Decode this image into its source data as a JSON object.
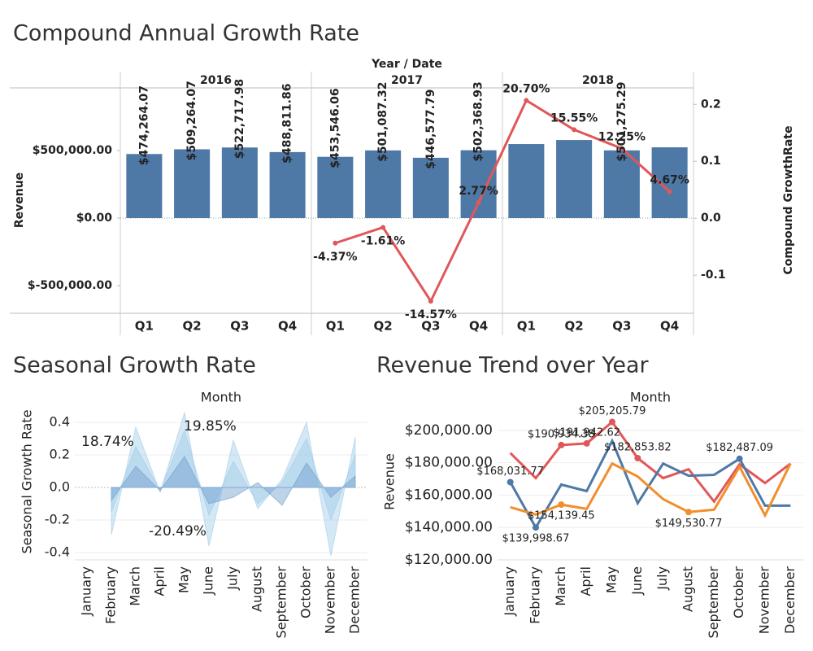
{
  "chart_data": [
    {
      "type": "bar-line",
      "title": "Compound Annual Growth Rate",
      "x_title": "Year  /  Date",
      "groups": [
        "2016",
        "2017",
        "2018"
      ],
      "categories": [
        "Q1",
        "Q2",
        "Q3",
        "Q4",
        "Q1",
        "Q2",
        "Q3",
        "Q4",
        "Q1",
        "Q2",
        "Q3",
        "Q4"
      ],
      "ylabel": "Revenue",
      "y2label": "Compound GrowthRate",
      "ylim": [
        -705000,
        964000
      ],
      "yticks": [
        {
          "value": 500000,
          "label": "$500,000.00"
        },
        {
          "value": 0,
          "label": "$0.00"
        },
        {
          "value": -500000,
          "label": "$-500,000.00"
        }
      ],
      "y2lim": [
        -0.167,
        0.229
      ],
      "y2ticks": [
        0.2,
        0.1,
        {
          "value": 0,
          "label": "0.0"
        },
        -0.1
      ],
      "series": [
        {
          "type": "bar",
          "color": "#4e79a7",
          "values": [
            474264.07,
            509264.07,
            522717.98,
            488811.86,
            453546.06,
            501087.32,
            446577.79,
            502368.93,
            548000,
            578000,
            501275.29,
            524000
          ],
          "value_labels": [
            "$474,264.07",
            "$509,264.07",
            "$522,717.98",
            "$488,811.86",
            "$453,546.06",
            "$501,087.32",
            "$446,577.79",
            "$502,368.93",
            null,
            null,
            "$501,275.29",
            null
          ]
        },
        {
          "type": "line",
          "axis": "y2",
          "color": "#e15759",
          "values": [
            null,
            null,
            null,
            null,
            -0.0437,
            -0.0161,
            -0.1457,
            0.0277,
            0.207,
            0.1555,
            0.1225,
            0.0467
          ],
          "value_labels": [
            null,
            null,
            null,
            null,
            "-4.37%",
            "-1.61%",
            "-14.57%",
            "2.77%",
            "20.70%",
            "15.55%",
            "12.25%",
            "4.67%"
          ]
        }
      ]
    },
    {
      "type": "area",
      "title": "Seasonal Growth Rate",
      "x_title": "Month",
      "ylabel": "Seasonal Growth Rate",
      "categories": [
        "January",
        "February",
        "March",
        "April",
        "May",
        "June",
        "July",
        "August",
        "September",
        "October",
        "November",
        "December"
      ],
      "ylim": [
        -0.445,
        0.47
      ],
      "yticks": [
        0.4,
        0.2,
        {
          "value": 0,
          "label": "0.0"
        },
        -0.2,
        -0.4
      ],
      "annotations": [
        "18.74%",
        "19.85%",
        "-20.49%"
      ],
      "series": [
        {
          "color": "#a0cbe8",
          "values": [
            null,
            -0.29,
            0.37,
            -0.03,
            0.46,
            -0.36,
            0.29,
            -0.13,
            0.05,
            0.4,
            -0.42,
            0.31
          ]
        },
        {
          "color": "#a0cbe8",
          "values": [
            null,
            -0.15,
            0.25,
            -0.02,
            0.35,
            -0.17,
            0.16,
            -0.1,
            0.03,
            0.3,
            -0.2,
            0.2
          ]
        },
        {
          "color": "#6f9ccb",
          "values": [
            null,
            -0.08,
            0.13,
            -0.02,
            0.19,
            -0.1,
            -0.06,
            0.03,
            -0.11,
            0.15,
            -0.06,
            0.07
          ]
        }
      ]
    },
    {
      "type": "line",
      "title": "Revenue Trend over Year",
      "x_title": "Month",
      "ylabel": "Revenue",
      "categories": [
        "January",
        "February",
        "March",
        "April",
        "May",
        "June",
        "July",
        "August",
        "September",
        "October",
        "November",
        "December"
      ],
      "ylim": [
        120000,
        212000
      ],
      "yticks": [
        {
          "value": 200000,
          "label": "$200,000.00"
        },
        {
          "value": 180000,
          "label": "$180,000.00"
        },
        {
          "value": 160000,
          "label": "$160,000.00"
        },
        {
          "value": 140000,
          "label": "$140,000.00"
        },
        {
          "value": 120000,
          "label": "$120,000.00"
        }
      ],
      "series": [
        {
          "color": "#e15759",
          "values": [
            186000,
            170500,
            190934.38,
            191942.62,
            205205.79,
            182853.82,
            170500,
            176000,
            156000,
            179000,
            167500,
            179500
          ],
          "value_labels": [
            null,
            null,
            "$190,934.38",
            "$191,942.62",
            "$205,205.79",
            "$182,853.82",
            null,
            null,
            null,
            null,
            null,
            null
          ]
        },
        {
          "color": "#4e79a7",
          "values": [
            168031.77,
            139998.67,
            166500,
            162500,
            193500,
            155000,
            179500,
            172000,
            172500,
            182487.09,
            153500,
            153500
          ],
          "value_labels": [
            "$168,031.77",
            "$139,998.67",
            null,
            null,
            null,
            null,
            null,
            null,
            null,
            "$182,487.09",
            null,
            null
          ]
        },
        {
          "color": "#f28e2b",
          "values": [
            152500,
            148000,
            154139.45,
            151500,
            179500,
            171500,
            157500,
            149530.77,
            151000,
            177500,
            147500,
            179500
          ],
          "value_labels": [
            null,
            null,
            "$154,139.45",
            null,
            null,
            null,
            null,
            "$149,530.77",
            null,
            null,
            null,
            null
          ]
        }
      ]
    }
  ]
}
